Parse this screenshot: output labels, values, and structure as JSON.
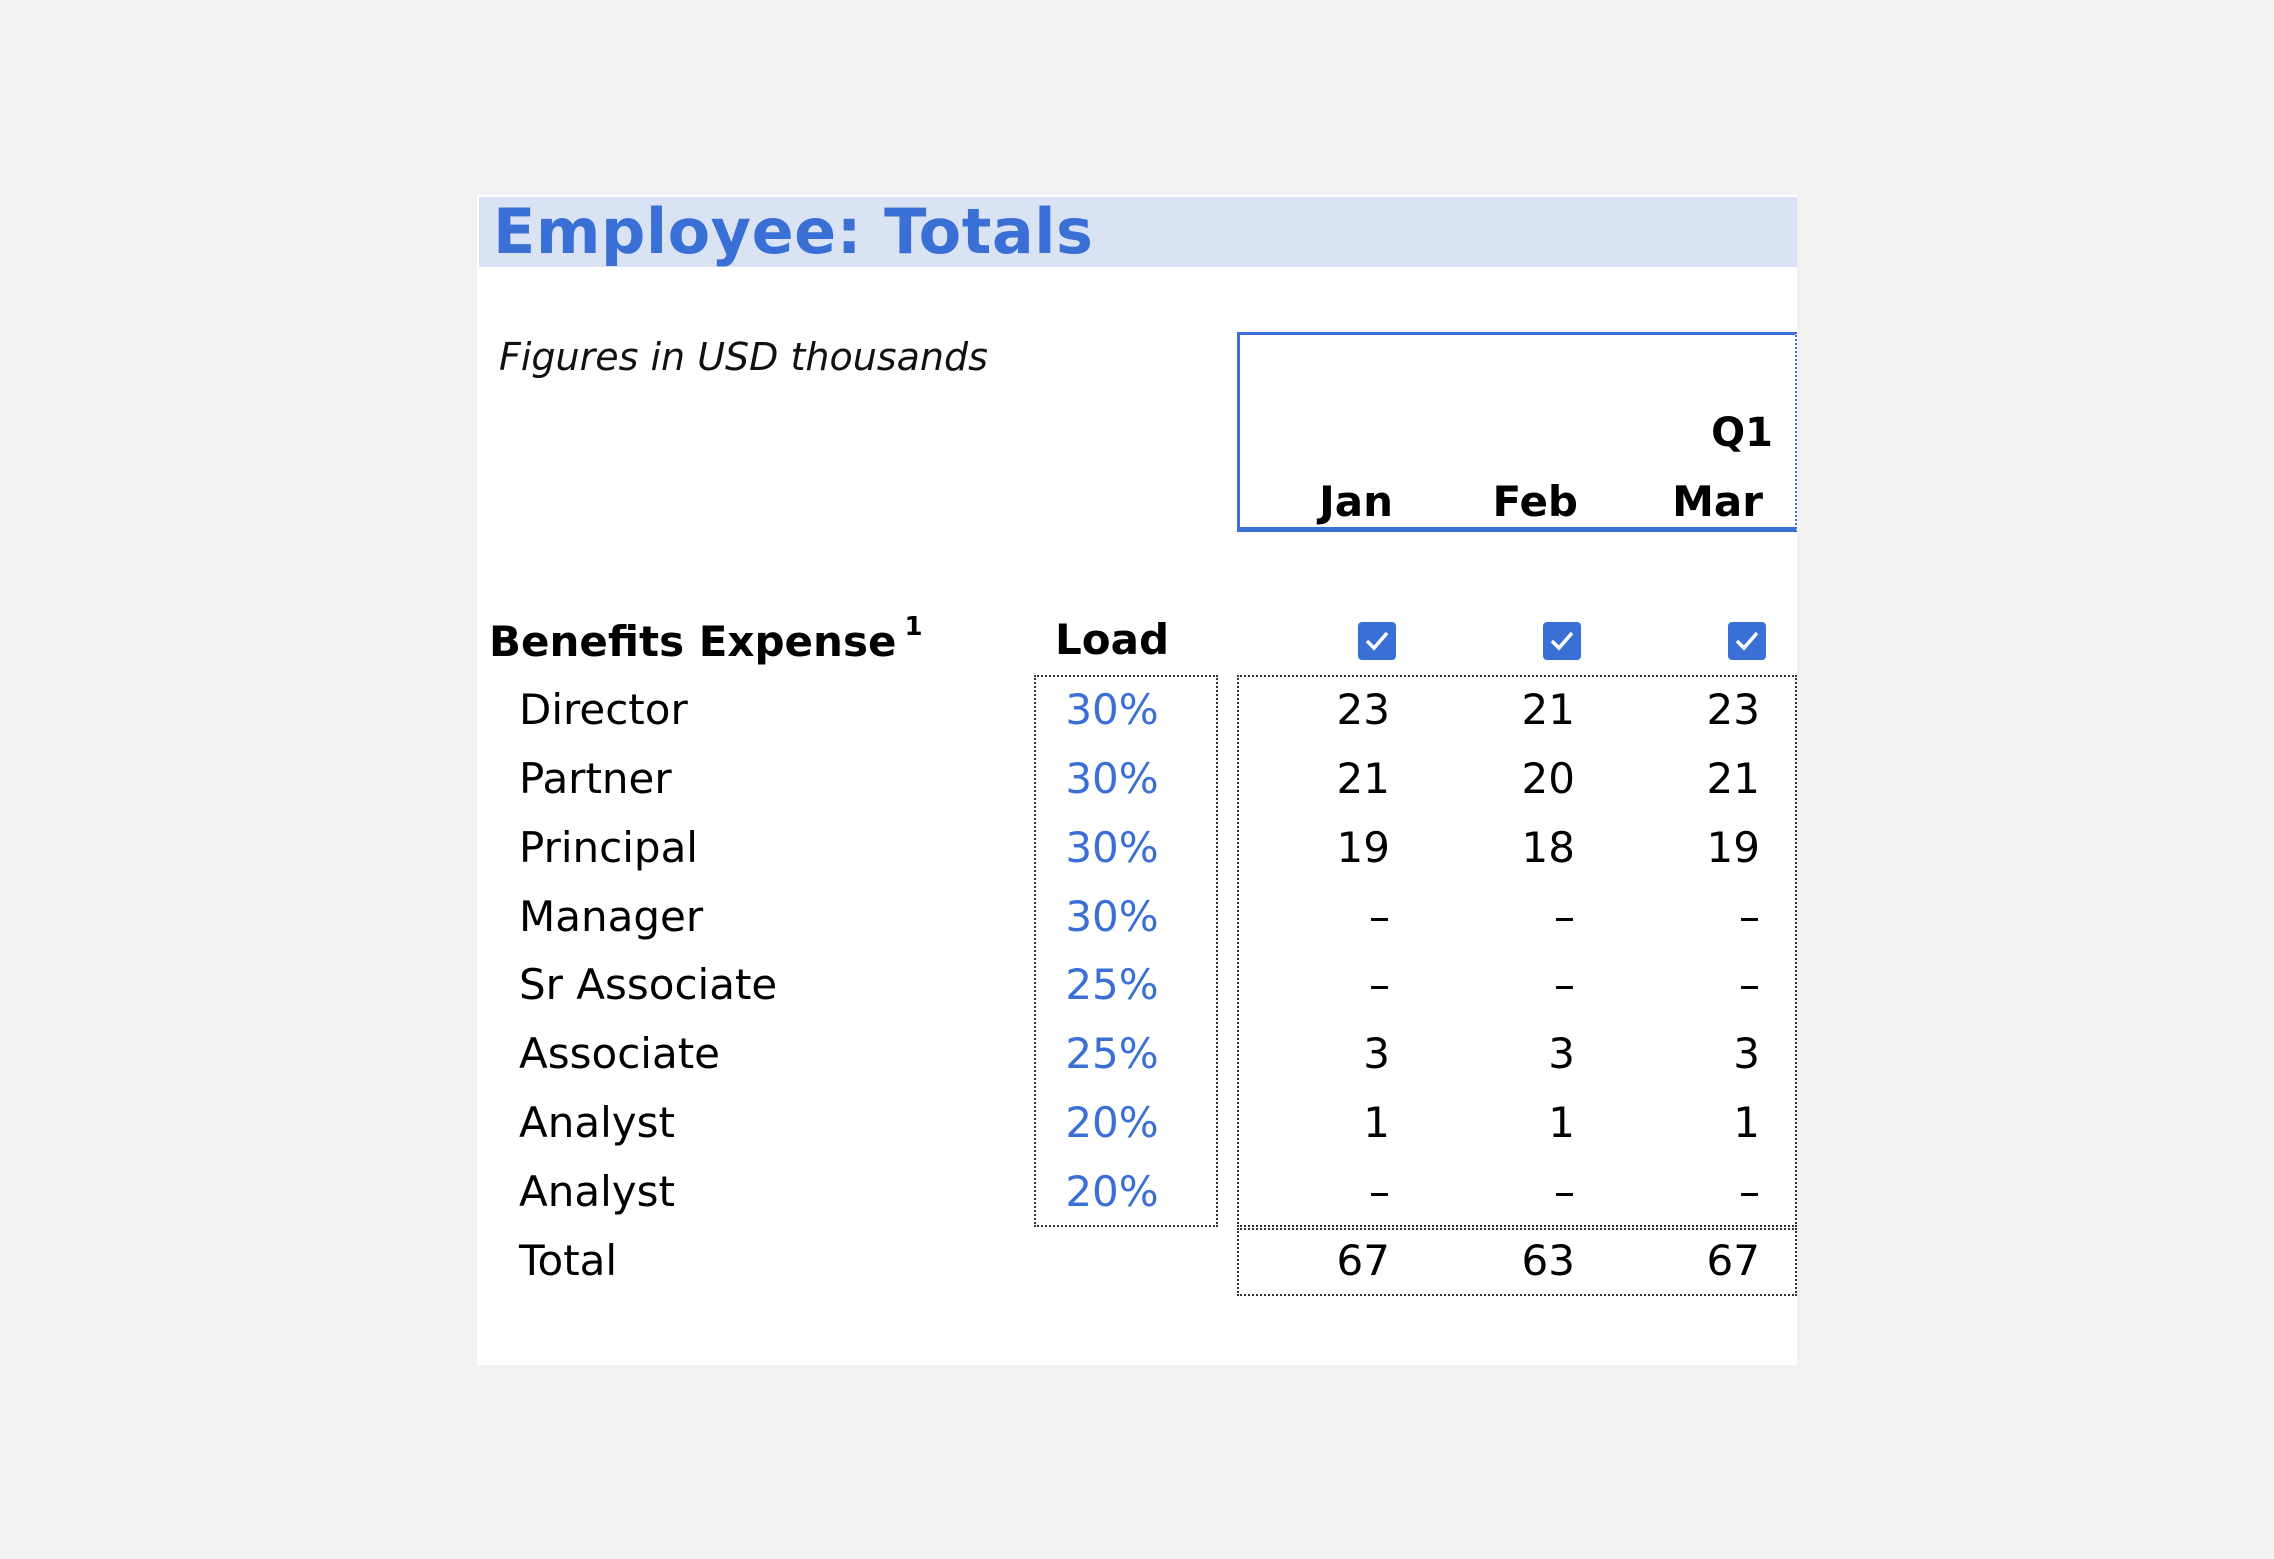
{
  "sheet": {
    "title": "Employee: Totals",
    "subtitle": "Figures in USD thousands",
    "quarter": "Q1",
    "months": [
      "Jan",
      "Feb",
      "Mar"
    ],
    "section": {
      "label": "Benefits Expense",
      "footnote": "1",
      "load_header": "Load"
    },
    "checkboxes": [
      true,
      true,
      true
    ],
    "rows": [
      {
        "label": "Director",
        "load": "30%",
        "values": [
          "23",
          "21",
          "23"
        ]
      },
      {
        "label": "Partner",
        "load": "30%",
        "values": [
          "21",
          "20",
          "21"
        ]
      },
      {
        "label": "Principal",
        "load": "30%",
        "values": [
          "19",
          "18",
          "19"
        ]
      },
      {
        "label": "Manager",
        "load": "30%",
        "values": [
          "–",
          "–",
          "–"
        ]
      },
      {
        "label": "Sr Associate",
        "load": "25%",
        "values": [
          "–",
          "–",
          "–"
        ]
      },
      {
        "label": "Associate",
        "load": "25%",
        "values": [
          "3",
          "3",
          "3"
        ]
      },
      {
        "label": "Analyst",
        "load": "20%",
        "values": [
          "1",
          "1",
          "1"
        ]
      },
      {
        "label": "Analyst",
        "load": "20%",
        "values": [
          "–",
          "–",
          "–"
        ]
      }
    ],
    "total": {
      "label": "Total",
      "values": [
        "67",
        "63",
        "67"
      ]
    },
    "colors": {
      "accent": "#3a70d6",
      "title_bg": "#dae3f3"
    }
  }
}
